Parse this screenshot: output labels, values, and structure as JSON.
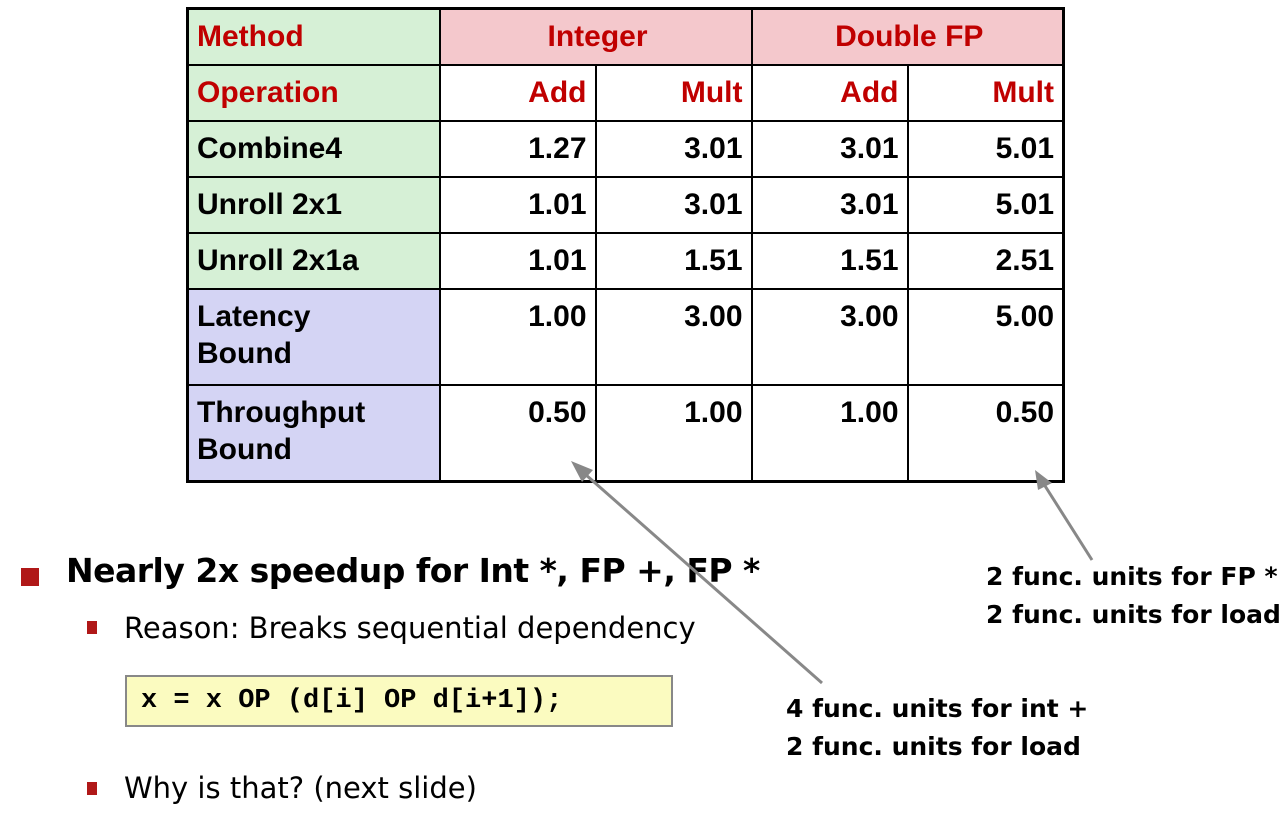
{
  "table": {
    "header": {
      "method_label": "Method",
      "integer_label": "Integer",
      "double_label": "Double FP"
    },
    "subheader": {
      "operation_label": "Operation",
      "cols": [
        "Add",
        "Mult",
        "Add",
        "Mult"
      ]
    },
    "rows": [
      {
        "method": "Combine4",
        "values": [
          "1.27",
          "3.01",
          "3.01",
          "5.01"
        ]
      },
      {
        "method": "Unroll 2x1",
        "values": [
          "1.01",
          "3.01",
          "3.01",
          "5.01"
        ]
      },
      {
        "method": "Unroll 2x1a",
        "values": [
          "1.01",
          "1.51",
          "1.51",
          "2.51"
        ]
      },
      {
        "method_line1": "Latency",
        "method_line2": "Bound",
        "values": [
          "1.00",
          "3.00",
          "3.00",
          "5.00"
        ]
      },
      {
        "method_line1": "Throughput",
        "method_line2": "Bound",
        "values": [
          "0.50",
          "1.00",
          "1.00",
          "0.50"
        ]
      }
    ]
  },
  "bullets": {
    "main": "Nearly 2x speedup for Int *, FP +, FP *",
    "sub1": "Reason: Breaks sequential dependency",
    "code": "x = x OP (d[i] OP d[i+1]);",
    "sub2": "Why is that? (next slide)"
  },
  "notes": {
    "int_line1": "4 func. units for int +",
    "int_line2": "2 func. units for load",
    "fp_line1": "2 func. units for FP *",
    "fp_line2": "2 func. units for load"
  },
  "colors": {
    "header_red": "#c00000",
    "method_green": "#d6f0d6",
    "bound_blue": "#d4d4f4",
    "group_pink": "#f4c8cc",
    "bullet_red": "#b01818",
    "code_bg": "#fbfbc0",
    "arrow_gray": "#888888"
  }
}
